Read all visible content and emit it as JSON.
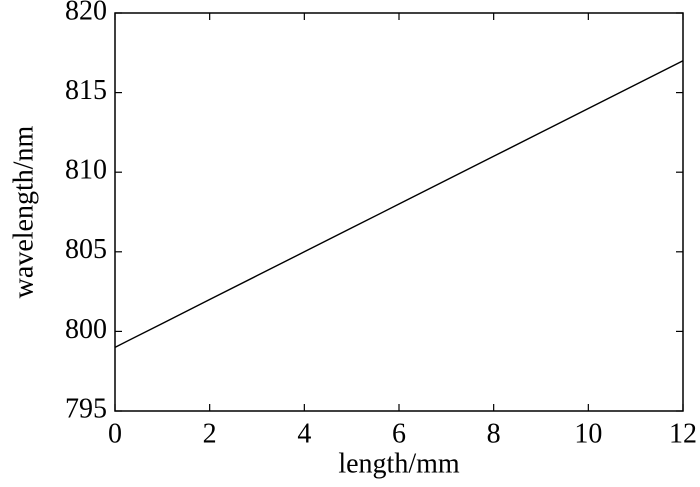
{
  "chart_data": {
    "type": "line",
    "x_label": "length/mm",
    "y_label": "wavelength/nm",
    "x": [
      0,
      1,
      2,
      3,
      4,
      5,
      6,
      7,
      8,
      9,
      10,
      11,
      12
    ],
    "series": [
      {
        "color": "#000000",
        "values": [
          799,
          800.5,
          802,
          803.5,
          805,
          806.5,
          808,
          809.5,
          811,
          812.5,
          814,
          815.5,
          817
        ]
      }
    ],
    "xlim": [
      0,
      12
    ],
    "xticks": [
      0,
      2,
      4,
      6,
      8,
      10,
      12
    ],
    "ylim": [
      795,
      820
    ],
    "yticks": [
      795,
      800,
      805,
      810,
      815,
      820
    ],
    "grid": false
  }
}
